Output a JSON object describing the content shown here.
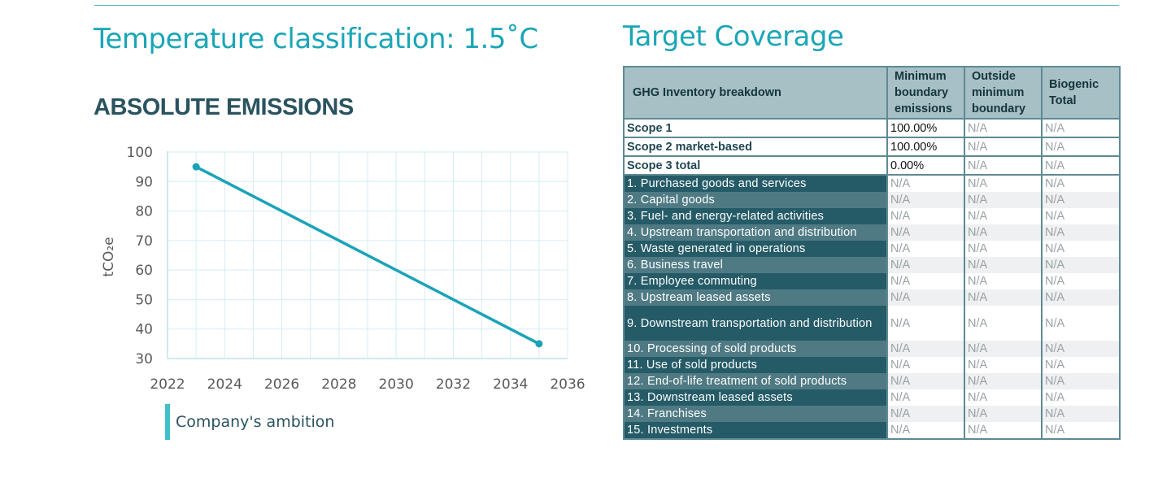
{
  "left_title": "Temperature classification: 1.5˚C",
  "chart_heading": "ABSOLUTE EMISSIONS",
  "chart_data": {
    "type": "line",
    "title": "ABSOLUTE EMISSIONS",
    "xlabel": "",
    "ylabel": "tCO₂e",
    "xlim": [
      2022,
      2036
    ],
    "ylim": [
      30,
      100
    ],
    "x_ticks": [
      2022,
      2024,
      2026,
      2028,
      2030,
      2032,
      2034,
      2036
    ],
    "y_ticks": [
      30,
      40,
      50,
      60,
      70,
      80,
      90,
      100
    ],
    "grid": true,
    "legend_position": "bottom-left",
    "series": [
      {
        "name": "Company's ambition",
        "color": "#1aa3b8",
        "points": [
          {
            "x": 2023,
            "y": 95
          },
          {
            "x": 2035,
            "y": 35
          }
        ]
      }
    ]
  },
  "legend_label": "Company's ambition",
  "target_coverage": {
    "title": "Target Coverage",
    "headers": [
      "GHG Inventory breakdown",
      "Minimum boundary emissions",
      "Outside minimum boundary",
      "Biogenic Total"
    ],
    "scopes": [
      {
        "name": "Scope 1",
        "min": "100.00%",
        "outside": "N/A",
        "biogenic": "N/A"
      },
      {
        "name": "Scope 2 market-based",
        "min": "100.00%",
        "outside": "N/A",
        "biogenic": "N/A"
      },
      {
        "name": "Scope 3 total",
        "min": "0.00%",
        "outside": "N/A",
        "biogenic": "N/A"
      }
    ],
    "categories": [
      {
        "name": "1. Purchased goods and services",
        "min": "N/A",
        "outside": "N/A",
        "biogenic": "N/A"
      },
      {
        "name": "2. Capital goods",
        "min": "N/A",
        "outside": "N/A",
        "biogenic": "N/A"
      },
      {
        "name": "3. Fuel- and energy-related activities",
        "min": "N/A",
        "outside": "N/A",
        "biogenic": "N/A"
      },
      {
        "name": "4. Upstream transportation and distribution",
        "min": "N/A",
        "outside": "N/A",
        "biogenic": "N/A"
      },
      {
        "name": "5. Waste generated in operations",
        "min": "N/A",
        "outside": "N/A",
        "biogenic": "N/A"
      },
      {
        "name": "6. Business travel",
        "min": "N/A",
        "outside": "N/A",
        "biogenic": "N/A"
      },
      {
        "name": "7. Employee commuting",
        "min": "N/A",
        "outside": "N/A",
        "biogenic": "N/A"
      },
      {
        "name": "8. Upstream leased assets",
        "min": "N/A",
        "outside": "N/A",
        "biogenic": "N/A"
      },
      {
        "name": "9. Downstream transportation and distribution",
        "min": "N/A",
        "outside": "N/A",
        "biogenic": "N/A"
      },
      {
        "name": "10. Processing of sold products",
        "min": "N/A",
        "outside": "N/A",
        "biogenic": "N/A"
      },
      {
        "name": "11. Use of sold products",
        "min": "N/A",
        "outside": "N/A",
        "biogenic": "N/A"
      },
      {
        "name": "12. End-of-life treatment of sold products",
        "min": "N/A",
        "outside": "N/A",
        "biogenic": "N/A"
      },
      {
        "name": "13. Downstream leased assets",
        "min": "N/A",
        "outside": "N/A",
        "biogenic": "N/A"
      },
      {
        "name": "14. Franchises",
        "min": "N/A",
        "outside": "N/A",
        "biogenic": "N/A"
      },
      {
        "name": "15. Investments",
        "min": "N/A",
        "outside": "N/A",
        "biogenic": "N/A"
      }
    ]
  }
}
